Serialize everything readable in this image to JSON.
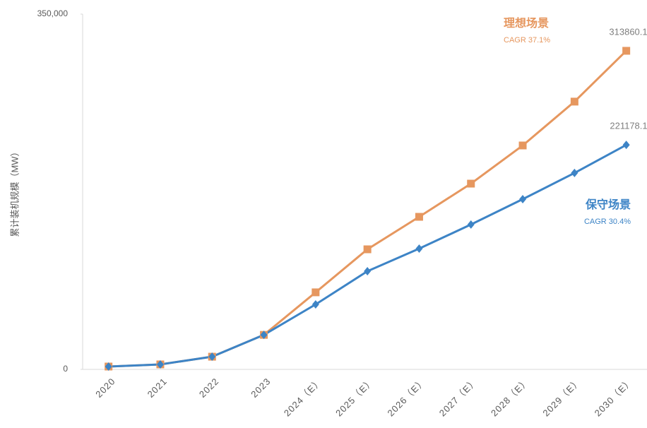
{
  "chart_data": {
    "type": "line",
    "y_label": "累计装机规模（MW）",
    "categories": [
      "2020",
      "2021",
      "2022",
      "2023",
      "2024（E）",
      "2025（E）",
      "2026（E）",
      "2027（E）",
      "2028（E）",
      "2029（E）",
      "2030（E）"
    ],
    "series": [
      {
        "name": "理想场景",
        "color": "#e6975f",
        "marker": "square",
        "values": [
          2800,
          4900,
          12500,
          34000,
          75900,
          118300,
          150300,
          183000,
          220600,
          263800,
          313860.1
        ]
      },
      {
        "name": "保守场景",
        "color": "#3d84c6",
        "marker": "diamond",
        "values": [
          2800,
          4900,
          12500,
          34000,
          64000,
          96700,
          119000,
          142700,
          167700,
          193500,
          221178.1
        ]
      }
    ],
    "annotations": [
      "CAGR 37.1%",
      "CAGR 30.4%"
    ],
    "ylim": [
      0,
      350000
    ],
    "yticks": [
      0,
      {
        "value": 350000,
        "label": "350,000"
      }
    ],
    "grid": false
  }
}
